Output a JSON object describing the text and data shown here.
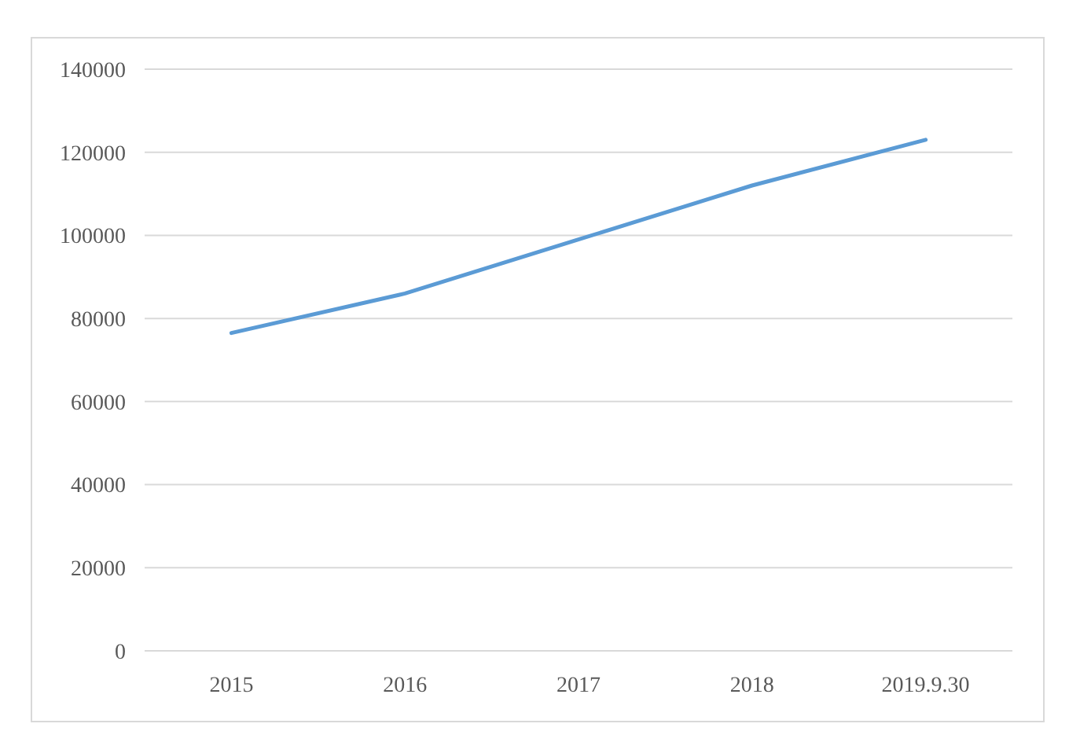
{
  "chart_data": {
    "type": "line",
    "categories": [
      "2015",
      "2016",
      "2017",
      "2018",
      "2019.9.30"
    ],
    "series": [
      {
        "color": "#5b9bd5",
        "values": [
          76500,
          86000,
          99000,
          112000,
          123000
        ]
      }
    ],
    "ylim": [
      0,
      140000
    ],
    "yticks": [
      0,
      20000,
      40000,
      60000,
      80000,
      100000,
      120000,
      140000
    ],
    "grid": "y",
    "marker": "none",
    "line_style": "solid"
  }
}
